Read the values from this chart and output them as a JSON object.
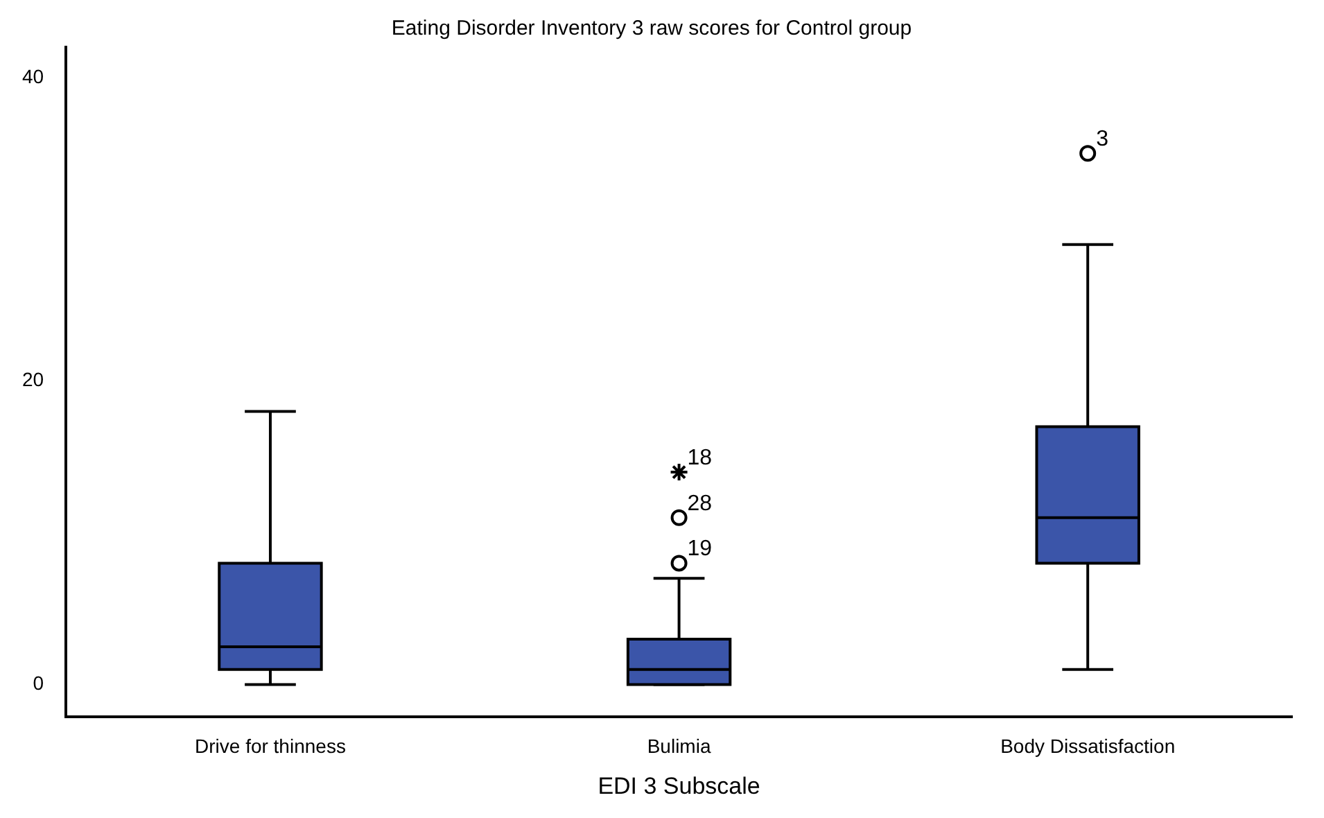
{
  "chart_data": {
    "type": "box",
    "title": "Eating Disorder Inventory 3 raw scores for Control group",
    "xlabel": "EDI 3 Subscale",
    "categories": [
      "Drive for thinness",
      "Bulimia",
      "Body Dissatisfaction"
    ],
    "color": "#3b55a9",
    "boxes": [
      {
        "low": 0,
        "q1": 1,
        "median": 2.5,
        "q3": 8,
        "high": 18
      },
      {
        "low": 0,
        "q1": 0,
        "median": 1,
        "q3": 3,
        "high": 7
      },
      {
        "low": 1,
        "q1": 8,
        "median": 11,
        "q3": 17,
        "high": 29
      }
    ],
    "series": [
      {
        "type": "scatter",
        "marker": "cross",
        "color": "#000000",
        "x": [
          "Bulimia"
        ],
        "values": [
          14
        ]
      },
      {
        "type": "scatter",
        "marker": "circle",
        "color": "#000000",
        "x": [
          "Bulimia",
          "Bulimia",
          "Body Dissatisfaction"
        ],
        "values": [
          8,
          11,
          35
        ]
      }
    ],
    "annotations": [
      {
        "text": "18",
        "x": "Bulimia",
        "y": 14
      },
      {
        "text": "28",
        "x": "Bulimia",
        "y": 11
      },
      {
        "text": "19",
        "x": "Bulimia",
        "y": 8
      },
      {
        "text": "3",
        "x": "Body Dissatisfaction",
        "y": 35
      }
    ],
    "ylim": [
      -2.1,
      42
    ],
    "yticks": [
      0,
      20,
      40
    ],
    "grid": false,
    "legend": false
  }
}
